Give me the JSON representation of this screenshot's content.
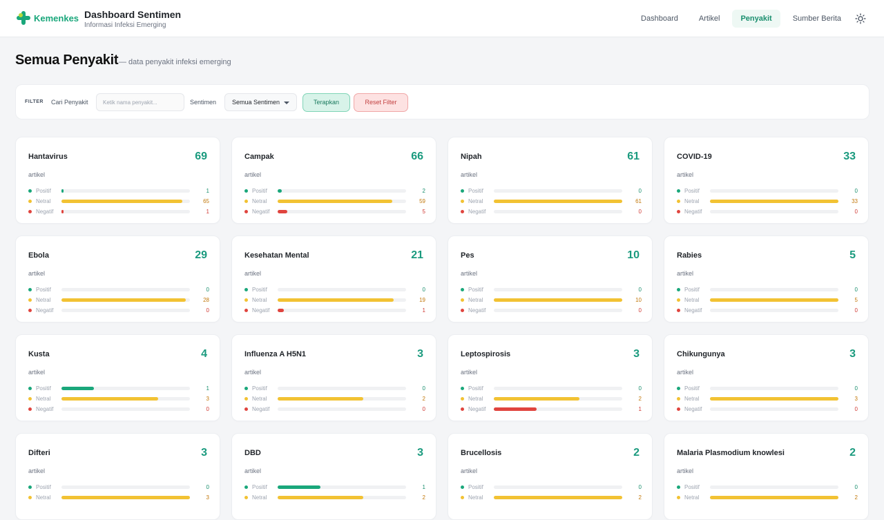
{
  "header": {
    "logo_text": "Kemenkes",
    "title": "Dashboard Sentimen",
    "subtitle": "Informasi Infeksi Emerging",
    "nav": [
      "Dashboard",
      "Artikel",
      "Penyakit",
      "Sumber Berita"
    ],
    "active_nav": "Penyakit",
    "theme_icon": "sun-icon"
  },
  "page": {
    "title": "Semua Penyakit",
    "subtitle": "— data penyakit infeksi emerging"
  },
  "filter": {
    "tag": "FILTER",
    "search_label": "Cari Penyakit",
    "search_placeholder": "Ketik nama penyakit...",
    "search_value": "",
    "sentiment_label": "Sentimen",
    "sentiment_selected": "Semua Sentimen",
    "apply_label": "Terapkan",
    "reset_label": "Reset Filter"
  },
  "labels": {
    "unit": "artikel",
    "positif": "Positif",
    "netral": "Netral",
    "negatif": "Negatif"
  },
  "colors": {
    "positif": "#1aa77b",
    "netral": "#f2c233",
    "negatif": "#e0443e",
    "accent": "#1a9a7e"
  },
  "diseases": [
    {
      "name": "Hantavirus",
      "total": 69,
      "positif": 1,
      "netral": 65,
      "negatif": 1
    },
    {
      "name": "Campak",
      "total": 66,
      "positif": 2,
      "netral": 59,
      "negatif": 5
    },
    {
      "name": "Nipah",
      "total": 61,
      "positif": 0,
      "netral": 61,
      "negatif": 0
    },
    {
      "name": "COVID-19",
      "total": 33,
      "positif": 0,
      "netral": 33,
      "negatif": 0
    },
    {
      "name": "Ebola",
      "total": 29,
      "positif": 0,
      "netral": 28,
      "negatif": 0
    },
    {
      "name": "Kesehatan Mental",
      "total": 21,
      "positif": 0,
      "netral": 19,
      "negatif": 1
    },
    {
      "name": "Pes",
      "total": 10,
      "positif": 0,
      "netral": 10,
      "negatif": 0
    },
    {
      "name": "Rabies",
      "total": 5,
      "positif": 0,
      "netral": 5,
      "negatif": 0
    },
    {
      "name": "Kusta",
      "total": 4,
      "positif": 1,
      "netral": 3,
      "negatif": 0
    },
    {
      "name": "Influenza A H5N1",
      "total": 3,
      "positif": 0,
      "netral": 2,
      "negatif": 0
    },
    {
      "name": "Leptospirosis",
      "total": 3,
      "positif": 0,
      "netral": 2,
      "negatif": 1
    },
    {
      "name": "Chikungunya",
      "total": 3,
      "positif": 0,
      "netral": 3,
      "negatif": 0
    },
    {
      "name": "Difteri",
      "total": 3,
      "positif": 0,
      "netral": 3,
      "negatif": null
    },
    {
      "name": "DBD",
      "total": 3,
      "positif": 1,
      "netral": 2,
      "negatif": null
    },
    {
      "name": "Brucellosis",
      "total": 2,
      "positif": 0,
      "netral": 2,
      "negatif": null
    },
    {
      "name": "Malaria Plasmodium knowlesi",
      "total": 2,
      "positif": 0,
      "netral": 2,
      "negatif": null
    }
  ]
}
